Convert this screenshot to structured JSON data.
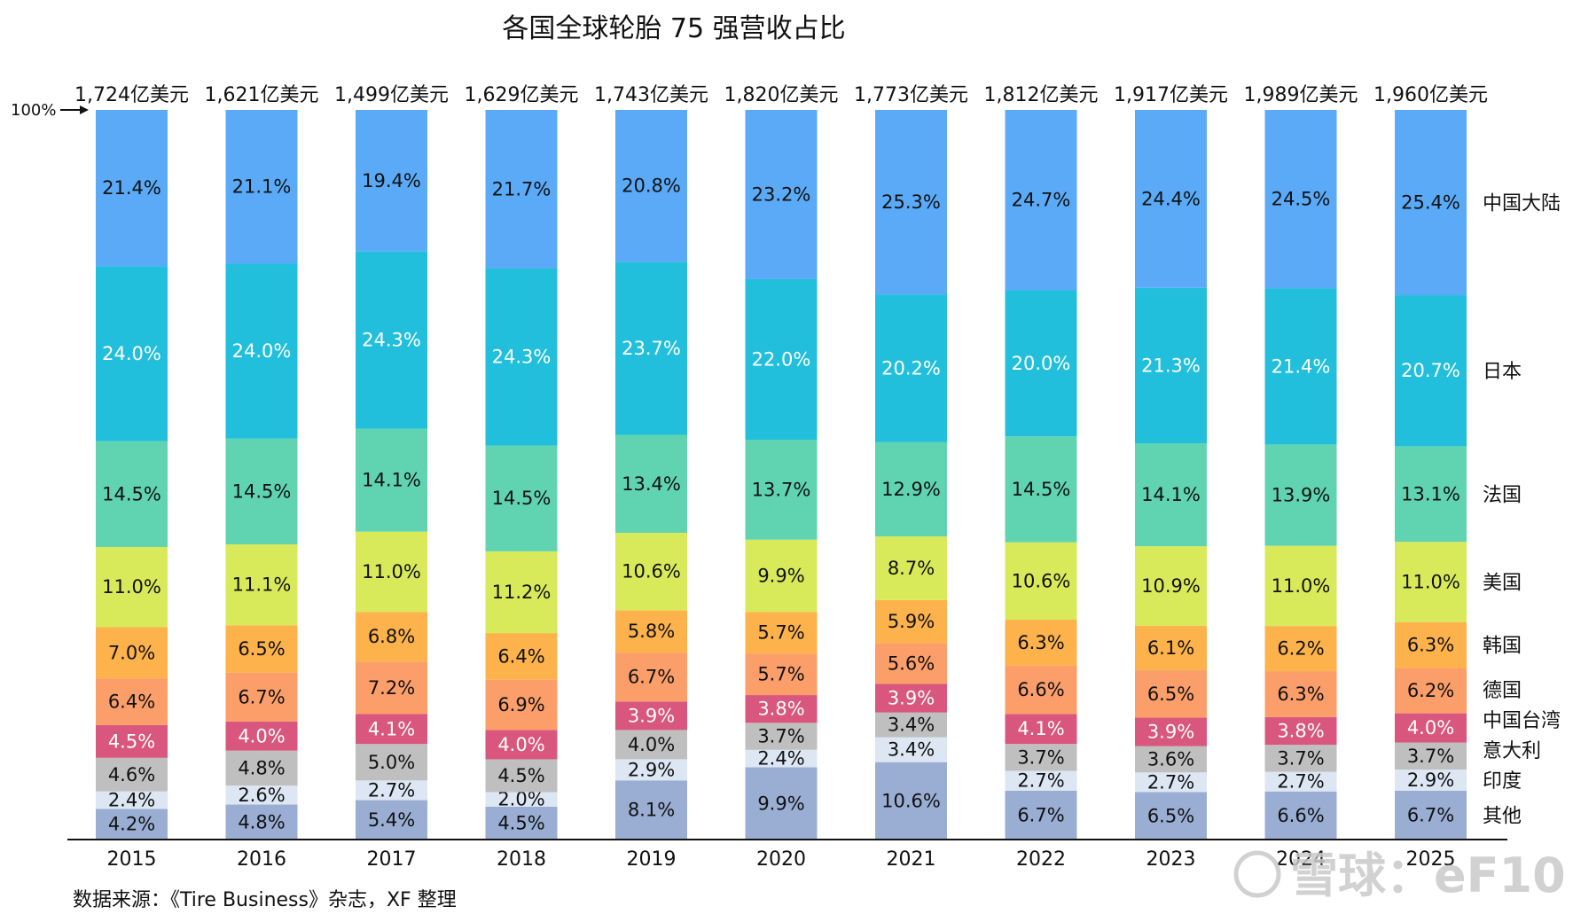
{
  "chart_data": {
    "type": "bar",
    "stacked": true,
    "title": "各国全球轮胎 75 强营收占比",
    "categories": [
      "2015",
      "2016",
      "2017",
      "2018",
      "2019",
      "2020",
      "2021",
      "2022",
      "2023",
      "2024",
      "2025"
    ],
    "totals": [
      "1,724亿美元",
      "1,621亿美元",
      "1,499亿美元",
      "1,629亿美元",
      "1,743亿美元",
      "1,820亿美元",
      "1,773亿美元",
      "1,812亿美元",
      "1,917亿美元",
      "1,989亿美元",
      "1,960亿美元"
    ],
    "y_marker": "100%",
    "series": [
      {
        "name": "其他",
        "color": "#9aaed4",
        "label_color": "#111111",
        "values": [
          4.2,
          4.8,
          5.4,
          4.5,
          8.1,
          9.9,
          10.6,
          6.7,
          6.5,
          6.6,
          6.7
        ]
      },
      {
        "name": "印度",
        "color": "#dde6f3",
        "label_color": "#111111",
        "values": [
          2.4,
          2.6,
          2.7,
          2.0,
          2.9,
          2.4,
          3.4,
          2.7,
          2.7,
          2.7,
          2.9
        ]
      },
      {
        "name": "意大利",
        "color": "#bfbfbf",
        "label_color": "#111111",
        "values": [
          4.6,
          4.8,
          5.0,
          4.5,
          4.0,
          3.7,
          3.4,
          3.7,
          3.6,
          3.7,
          3.7
        ]
      },
      {
        "name": "中国台湾",
        "color": "#d9567e",
        "label_color": "#ffffff",
        "values": [
          4.5,
          4.0,
          4.1,
          4.0,
          3.9,
          3.8,
          3.9,
          4.1,
          3.9,
          3.8,
          4.0
        ]
      },
      {
        "name": "德国",
        "color": "#fb9e6a",
        "label_color": "#111111",
        "values": [
          6.4,
          6.7,
          7.2,
          6.9,
          6.7,
          5.7,
          5.6,
          6.6,
          6.5,
          6.3,
          6.2
        ]
      },
      {
        "name": "韩国",
        "color": "#fdb24c",
        "label_color": "#111111",
        "values": [
          7.0,
          6.5,
          6.8,
          6.4,
          5.8,
          5.7,
          5.9,
          6.3,
          6.1,
          6.2,
          6.3
        ]
      },
      {
        "name": "美国",
        "color": "#d8ea5a",
        "label_color": "#111111",
        "values": [
          11.0,
          11.1,
          11.0,
          11.2,
          10.6,
          9.9,
          8.7,
          10.6,
          10.9,
          11.0,
          11.0
        ]
      },
      {
        "name": "法国",
        "color": "#60d4b0",
        "label_color": "#111111",
        "values": [
          14.5,
          14.5,
          14.1,
          14.5,
          13.4,
          13.7,
          12.9,
          14.5,
          14.1,
          13.9,
          13.1
        ]
      },
      {
        "name": "日本",
        "color": "#21bfdc",
        "label_color": "#ffffff",
        "values": [
          24.0,
          24.0,
          24.3,
          24.3,
          23.7,
          22.0,
          20.2,
          20.0,
          21.3,
          21.4,
          20.7
        ]
      },
      {
        "name": "中国大陆",
        "color": "#5aaaf8",
        "label_color": "#111111",
        "values": [
          21.4,
          21.1,
          19.4,
          21.7,
          20.8,
          23.2,
          25.3,
          24.7,
          24.4,
          24.5,
          25.4
        ]
      }
    ],
    "unit": "%",
    "legend_position": "right"
  },
  "source": "数据来源：《Tire Business》杂志，XF 整理",
  "watermark": "雪球：eF10"
}
